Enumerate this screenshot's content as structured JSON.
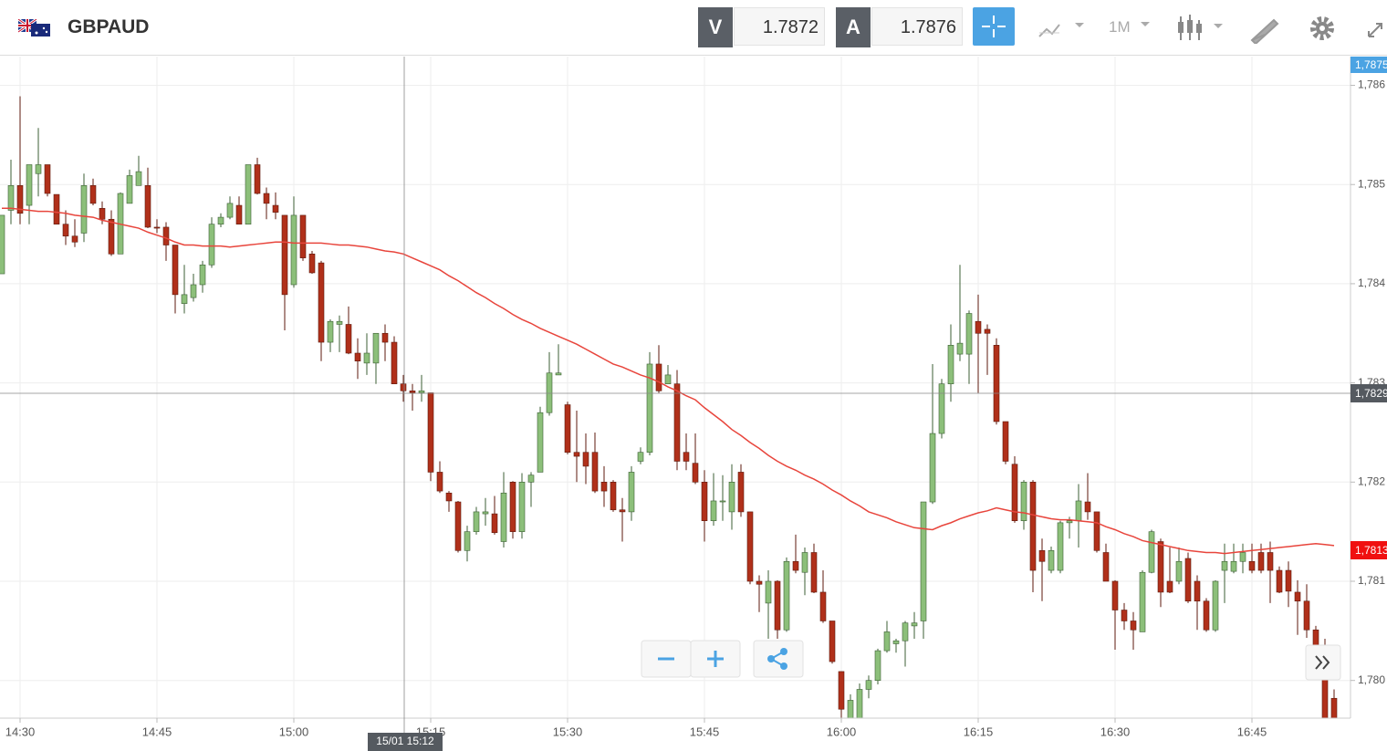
{
  "header": {
    "symbol": "GBPAUD",
    "bid_label": "V",
    "bid": "1.7872",
    "ask_label": "A",
    "ask": "1.7876",
    "timeframe": "1M"
  },
  "ui": {
    "crosshair_time": "15/01 15:12",
    "ask_tag": "1,7875",
    "crosshair_tag": "1,7829",
    "last_tag": "1,7813"
  },
  "chart_data": {
    "type": "candlestick",
    "up_color": "#8cbf7a",
    "down_color": "#b0301a",
    "grid": true,
    "categories": [
      null,
      null,
      "14:30",
      null,
      null,
      null,
      null,
      null,
      null,
      null,
      null,
      null,
      null,
      null,
      null,
      null,
      null,
      "14:45",
      null,
      null,
      null,
      null,
      null,
      null,
      null,
      null,
      null,
      null,
      null,
      null,
      null,
      null,
      "15:00",
      null,
      null,
      null,
      null,
      null,
      null,
      null,
      null,
      null,
      null,
      null,
      null,
      null,
      null,
      "15:15",
      null,
      null,
      null,
      null,
      null,
      null,
      null,
      null,
      null,
      null,
      null,
      null,
      null,
      null,
      "15:30",
      null,
      null,
      null,
      null,
      null,
      null,
      null,
      null,
      null,
      null,
      null,
      null,
      null,
      null,
      "15:45",
      null,
      null,
      null,
      null,
      null,
      null,
      null,
      null,
      null,
      null,
      null,
      null,
      null,
      null,
      "16:00",
      null,
      null,
      null,
      null,
      null,
      null,
      null,
      null,
      null,
      null,
      null,
      null,
      null,
      null,
      "16:15",
      null,
      null,
      null,
      null,
      null,
      null,
      null,
      null,
      null,
      null,
      null,
      null,
      null,
      null,
      "16:30",
      null,
      null,
      null,
      null,
      null,
      null,
      null,
      null,
      null,
      null,
      null,
      null,
      null,
      null,
      "16:45",
      null,
      null,
      null,
      null,
      null,
      null,
      null,
      null,
      null
    ],
    "open": [
      1.7841,
      1.78474,
      1.78499,
      1.78479,
      1.78511,
      1.7852,
      1.7849,
      1.7846,
      1.78448,
      1.78451,
      1.78499,
      1.78476,
      1.78465,
      1.7843,
      1.78481,
      1.78499,
      1.78499,
      1.78457,
      1.78457,
      1.78439,
      1.7838,
      1.78386,
      1.78399,
      1.78419,
      1.7846,
      1.78467,
      1.78479,
      1.7846,
      1.7852,
      1.78491,
      1.78479,
      1.78469,
      1.78399,
      1.78469,
      1.7843,
      1.78421,
      1.78341,
      1.78359,
      1.78359,
      1.7833,
      1.7832,
      1.7832,
      1.7835,
      1.78341,
      1.78299,
      1.78292,
      1.7829,
      1.7829,
      1.7821,
      1.78189,
      1.7818,
      1.78131,
      1.7815,
      1.78168,
      1.78168,
      1.7814,
      1.782,
      1.7815,
      1.782,
      1.7821,
      1.7827,
      1.78308,
      1.78278,
      1.7823,
      1.7823,
      1.7823,
      1.782,
      1.782,
      1.78172,
      1.7817,
      1.78221,
      1.7823,
      1.78319,
      1.78299,
      1.78299,
      1.7823,
      1.78219,
      1.782,
      1.78161,
      1.7818,
      1.7817,
      1.7821,
      1.7817,
      1.781,
      1.78078,
      1.781,
      1.78051,
      1.7812,
      1.78109,
      1.78129,
      1.78089,
      1.7806,
      1.78009,
      1.77962,
      1.77962,
      1.77991,
      1.78,
      1.7803,
      1.78037,
      1.7804,
      1.78055,
      1.7806,
      1.7818,
      1.78249,
      1.78299,
      1.78329,
      1.78329,
      1.78362,
      1.78354,
      1.78338,
      1.78261,
      1.78218,
      1.78161,
      1.782,
      1.78131,
      1.78111,
      1.78111,
      1.78159,
      1.78161,
      1.7818,
      1.7817,
      1.78129,
      1.781,
      1.78071,
      1.7806,
      1.78049,
      1.78109,
      1.7814,
      1.781,
      1.781,
      1.78123,
      1.781,
      1.7808,
      1.78051,
      1.78111,
      1.7811,
      1.7812,
      1.7812,
      1.78129,
      1.78129,
      1.78111,
      1.78111,
      1.78089,
      1.7808,
      1.78051,
      1.78034,
      1.77982
    ],
    "high": [
      1.78469,
      1.78525,
      1.78589,
      1.7852,
      1.78557,
      1.7852,
      1.7849,
      1.78474,
      1.78465,
      1.78511,
      1.78506,
      1.78483,
      1.78474,
      1.78492,
      1.78515,
      1.78529,
      1.78517,
      1.78465,
      1.78462,
      1.78439,
      1.78419,
      1.7841,
      1.78423,
      1.78467,
      1.78471,
      1.78488,
      1.78488,
      1.7852,
      1.78527,
      1.78497,
      1.78492,
      1.78469,
      1.78488,
      1.78469,
      1.78433,
      1.78423,
      1.78364,
      1.78368,
      1.78377,
      1.78345,
      1.7835,
      1.7835,
      1.78359,
      1.78347,
      1.78308,
      1.78299,
      1.78308,
      1.7829,
      1.78221,
      1.78191,
      1.78181,
      1.78156,
      1.78175,
      1.78184,
      1.78186,
      1.7821,
      1.78201,
      1.78209,
      1.7821,
      1.78276,
      1.78331,
      1.78339,
      1.78281,
      1.78272,
      1.78249,
      1.7825,
      1.78216,
      1.78202,
      1.78184,
      1.78216,
      1.78235,
      1.78331,
      1.78338,
      1.78318,
      1.78313,
      1.78249,
      1.78249,
      1.78212,
      1.78209,
      1.78207,
      1.78218,
      1.78218,
      1.7817,
      1.78106,
      1.78111,
      1.78101,
      1.78124,
      1.78147,
      1.78134,
      1.78138,
      1.78111,
      1.7806,
      1.78009,
      1.77986,
      1.77997,
      1.78005,
      1.78032,
      1.7806,
      1.78042,
      1.7806,
      1.78069,
      1.7818,
      1.78319,
      1.78304,
      1.78359,
      1.78419,
      1.78373,
      1.78389,
      1.78359,
      1.78345,
      1.78261,
      1.78226,
      1.78202,
      1.78202,
      1.78143,
      1.78135,
      1.78161,
      1.78165,
      1.78198,
      1.78209,
      1.7817,
      1.78138,
      1.78101,
      1.78078,
      1.78069,
      1.78111,
      1.78152,
      1.78143,
      1.78134,
      1.78134,
      1.78129,
      1.78106,
      1.78083,
      1.78101,
      1.78138,
      1.78138,
      1.78138,
      1.78138,
      1.78138,
      1.7814,
      1.78115,
      1.7812,
      1.78101,
      1.78097,
      1.78055,
      1.78042,
      1.77991
    ],
    "low": [
      1.7841,
      1.7846,
      1.7846,
      1.7846,
      1.78488,
      1.78488,
      1.7846,
      1.78439,
      1.78437,
      1.78442,
      1.78479,
      1.7846,
      1.78428,
      1.7843,
      1.78481,
      1.78499,
      1.78456,
      1.78451,
      1.78423,
      1.7837,
      1.7837,
      1.78382,
      1.78391,
      1.78416,
      1.78457,
      1.78465,
      1.7846,
      1.7846,
      1.7849,
      1.78465,
      1.78465,
      1.78353,
      1.78396,
      1.78423,
      1.7841,
      1.78322,
      1.78331,
      1.78331,
      1.78329,
      1.78304,
      1.78308,
      1.78299,
      1.78322,
      1.78299,
      1.78281,
      1.78272,
      1.78281,
      1.78201,
      1.78189,
      1.7817,
      1.78129,
      1.7812,
      1.78147,
      1.78156,
      1.78147,
      1.78134,
      1.78143,
      1.78143,
      1.78175,
      1.7821,
      1.78267,
      1.78308,
      1.78228,
      1.782,
      1.78198,
      1.78189,
      1.78175,
      1.7817,
      1.7814,
      1.78161,
      1.78218,
      1.78227,
      1.7829,
      1.78299,
      1.78212,
      1.78212,
      1.78198,
      1.7814,
      1.78156,
      1.78161,
      1.78152,
      1.78165,
      1.78097,
      1.78069,
      1.78042,
      1.78042,
      1.78049,
      1.78108,
      1.78086,
      1.78088,
      1.78058,
      1.78017,
      1.77962,
      1.77959,
      1.77959,
      1.77982,
      1.77996,
      1.78028,
      1.78028,
      1.78014,
      1.78042,
      1.78042,
      1.78178,
      1.78244,
      1.78281,
      1.78322,
      1.78299,
      1.7829,
      1.78308,
      1.78258,
      1.78218,
      1.78159,
      1.78152,
      1.78089,
      1.7808,
      1.78108,
      1.78108,
      1.78143,
      1.78134,
      1.78162,
      1.78129,
      1.781,
      1.78031,
      1.78051,
      1.78031,
      1.78049,
      1.78108,
      1.78074,
      1.78088,
      1.78097,
      1.78078,
      1.78051,
      1.78049,
      1.78049,
      1.78078,
      1.78108,
      1.78108,
      1.78108,
      1.78108,
      1.78078,
      1.78088,
      1.78074,
      1.78046,
      1.78043,
      1.78019,
      1.77959,
      1.77959
    ],
    "close": [
      1.78469,
      1.78499,
      1.78471,
      1.7852,
      1.7852,
      1.78491,
      1.7846,
      1.78448,
      1.78442,
      1.78499,
      1.78481,
      1.78465,
      1.7843,
      1.78491,
      1.78509,
      1.78513,
      1.78457,
      1.78456,
      1.78439,
      1.78389,
      1.78389,
      1.78399,
      1.78419,
      1.7846,
      1.78467,
      1.78481,
      1.7846,
      1.7852,
      1.78491,
      1.78481,
      1.78472,
      1.78389,
      1.78469,
      1.78426,
      1.78411,
      1.78341,
      1.78362,
      1.78362,
      1.7833,
      1.78322,
      1.7833,
      1.7835,
      1.78341,
      1.78299,
      1.78292,
      1.7829,
      1.78292,
      1.7821,
      1.78191,
      1.78181,
      1.78131,
      1.7815,
      1.7817,
      1.7817,
      1.78149,
      1.78189,
      1.7815,
      1.782,
      1.78207,
      1.7827,
      1.7831,
      1.7831,
      1.7823,
      1.78226,
      1.78216,
      1.78191,
      1.78191,
      1.78172,
      1.7817,
      1.7821,
      1.7823,
      1.78319,
      1.78292,
      1.78308,
      1.78221,
      1.78221,
      1.782,
      1.78161,
      1.78181,
      1.78181,
      1.782,
      1.7817,
      1.781,
      1.78097,
      1.781,
      1.78051,
      1.7812,
      1.78111,
      1.78129,
      1.78089,
      1.7806,
      1.78019,
      1.77971,
      1.7798,
      1.77991,
      1.78,
      1.7803,
      1.78049,
      1.7804,
      1.78058,
      1.78058,
      1.7818,
      1.78249,
      1.78299,
      1.78338,
      1.7834,
      1.7837,
      1.7835,
      1.7835,
      1.78261,
      1.78221,
      1.78161,
      1.782,
      1.78111,
      1.7812,
      1.78131,
      1.78159,
      1.78161,
      1.78181,
      1.7817,
      1.78131,
      1.781,
      1.78071,
      1.7806,
      1.78051,
      1.78109,
      1.7815,
      1.78089,
      1.78089,
      1.7812,
      1.7808,
      1.7808,
      1.78051,
      1.781,
      1.7812,
      1.7812,
      1.78129,
      1.78111,
      1.78111,
      1.78111,
      1.78089,
      1.7809,
      1.7808,
      1.78051,
      1.78031,
      1.77959,
      1.77959
    ],
    "ma_line": {
      "color": "#e8453c",
      "values": [
        1.78476,
        1.78476,
        1.78475,
        1.78474,
        1.78473,
        1.78473,
        1.78472,
        1.78471,
        1.78469,
        1.78468,
        1.78467,
        1.78464,
        1.78462,
        1.7846,
        1.78458,
        1.78456,
        1.78452,
        1.78449,
        1.78446,
        1.78442,
        1.78439,
        1.78439,
        1.78438,
        1.78438,
        1.78438,
        1.78437,
        1.78438,
        1.78439,
        1.7844,
        1.78441,
        1.78442,
        1.78442,
        1.78441,
        1.78441,
        1.78441,
        1.78441,
        1.7844,
        1.78439,
        1.78439,
        1.78438,
        1.78437,
        1.78435,
        1.78433,
        1.78432,
        1.7843,
        1.78426,
        1.78422,
        1.78418,
        1.78414,
        1.78408,
        1.78403,
        1.78397,
        1.78391,
        1.78386,
        1.7838,
        1.78375,
        1.78369,
        1.78364,
        1.7836,
        1.78355,
        1.78351,
        1.78347,
        1.78343,
        1.78339,
        1.78334,
        1.78329,
        1.78324,
        1.78319,
        1.78316,
        1.78312,
        1.78308,
        1.78305,
        1.78301,
        1.78296,
        1.78292,
        1.78287,
        1.78283,
        1.78275,
        1.78268,
        1.78261,
        1.78253,
        1.78247,
        1.7824,
        1.78234,
        1.78227,
        1.78221,
        1.78216,
        1.78212,
        1.78207,
        1.78203,
        1.78198,
        1.78192,
        1.78187,
        1.78181,
        1.78176,
        1.7817,
        1.78167,
        1.78164,
        1.7816,
        1.78157,
        1.78154,
        1.78153,
        1.78152,
        1.78156,
        1.78159,
        1.78163,
        1.78166,
        1.78169,
        1.78171,
        1.78174,
        1.78172,
        1.7817,
        1.78169,
        1.78167,
        1.78165,
        1.78163,
        1.78162,
        1.78162,
        1.78161,
        1.7816,
        1.78159,
        1.78155,
        1.78152,
        1.78148,
        1.78145,
        1.78141,
        1.78139,
        1.78137,
        1.78135,
        1.78133,
        1.78131,
        1.7813,
        1.78129,
        1.78129,
        1.78128,
        1.78129,
        1.7813,
        1.78131,
        1.78132,
        1.78133,
        1.78134,
        1.78135,
        1.78136,
        1.78137,
        1.78138,
        1.78137,
        1.78136
      ]
    },
    "ylim": [
      1.77962,
      1.78629
    ],
    "yticks": [
      {
        "value": 1.78,
        "label": "1,780"
      },
      {
        "value": 1.781,
        "label": "1,781"
      },
      {
        "value": 1.782,
        "label": "1,782"
      },
      {
        "value": 1.783,
        "label": "1,783"
      },
      {
        "value": 1.784,
        "label": "1,784"
      },
      {
        "value": 1.785,
        "label": "1,785"
      },
      {
        "value": 1.786,
        "label": "1,786"
      }
    ]
  }
}
